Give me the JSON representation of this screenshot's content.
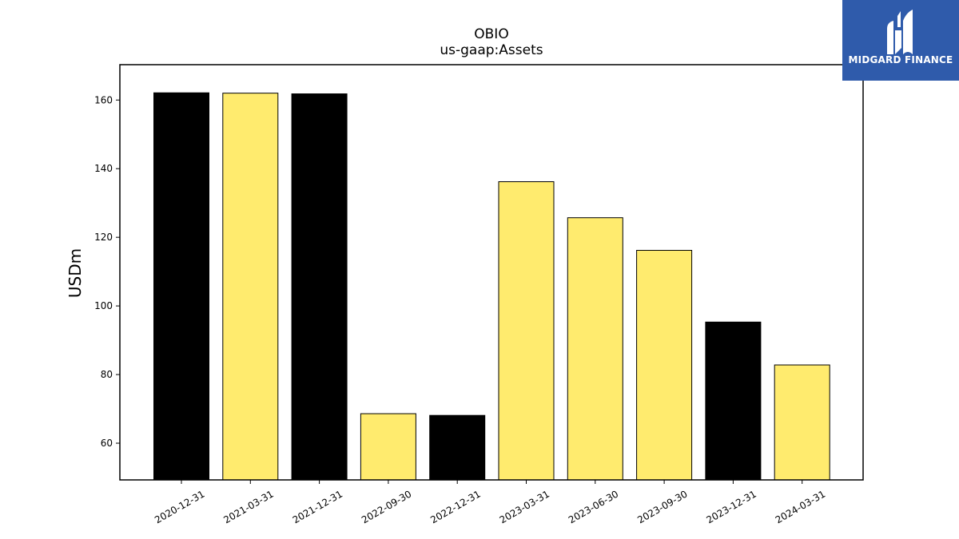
{
  "chart_data": {
    "type": "bar",
    "title": "OBIO",
    "subtitle": "us-gaap:Assets",
    "xlabel": "",
    "ylabel": "USDm",
    "categories": [
      "2020-12-31",
      "2021-03-31",
      "2021-12-31",
      "2022-09-30",
      "2022-12-31",
      "2023-03-31",
      "2023-06-30",
      "2023-09-30",
      "2023-12-31",
      "2024-03-31"
    ],
    "values": [
      162.1,
      162.0,
      161.8,
      68.6,
      68.1,
      136.2,
      125.7,
      116.2,
      95.3,
      82.8
    ],
    "bar_colors": [
      "#000000",
      "#ffeb6e",
      "#000000",
      "#ffeb6e",
      "#000000",
      "#ffeb6e",
      "#ffeb6e",
      "#ffeb6e",
      "#000000",
      "#ffeb6e"
    ],
    "ylim": [
      49.3,
      170.3
    ],
    "yticks": [
      60,
      80,
      100,
      120,
      140,
      160
    ],
    "grid": false,
    "legend": "none"
  },
  "logo": {
    "text": "MIDGARD FINANCE",
    "icon": "midgard-logo-icon",
    "background": "#2f5bab"
  }
}
